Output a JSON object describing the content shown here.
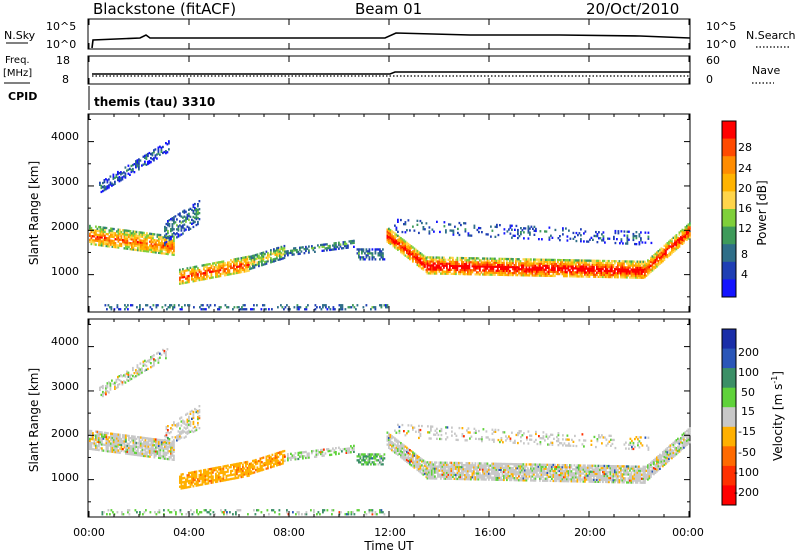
{
  "header": {
    "station": "Blackstone (fitACF)",
    "beam": "Beam 01",
    "date": "20/Oct/2010"
  },
  "top_panels": {
    "nsky_label": "N.Sky",
    "nsky_ticks": [
      "10^5",
      "10^0"
    ],
    "nsearch_label": "N.Search",
    "nsearch_ticks": [
      "10^5",
      "10^0"
    ],
    "freq_label": [
      "Freq.",
      "[MHz]"
    ],
    "freq_ticks": [
      "18",
      "8"
    ],
    "nave_label": "Nave",
    "nave_ticks": [
      "60",
      "0"
    ],
    "cpid_label": "CPID",
    "cpid_value": "themis (tau) 3310"
  },
  "power_panel": {
    "ylabel": "Slant Range [km]",
    "yticks": [
      "4000",
      "3000",
      "2000",
      "1000"
    ],
    "colorbar_label": "Power [dB]",
    "colorbar_ticks": [
      "28",
      "24",
      "20",
      "16",
      "12",
      "8",
      "4"
    ],
    "colors": [
      "#ff0000",
      "#ff4a00",
      "#ff8c00",
      "#ffb300",
      "#ffd54a",
      "#7fcf3a",
      "#3e9a5a",
      "#2f6e88",
      "#1f3fb4",
      "#1414ff"
    ]
  },
  "velocity_panel": {
    "ylabel": "Slant Range [km]",
    "yticks": [
      "4000",
      "3000",
      "2000",
      "1000"
    ],
    "colorbar_label_parts": [
      "Velocity [m s",
      "-1",
      "]"
    ],
    "colorbar_ticks": [
      "200",
      "100",
      "50",
      "15",
      "-15",
      "-50",
      "-100",
      "-200"
    ],
    "colors": [
      "#1a2ea8",
      "#2a56b8",
      "#3b8f66",
      "#5fd23a",
      "#c8c8c8",
      "#ffb000",
      "#ff6a00",
      "#ff3000",
      "#ff0000"
    ]
  },
  "xaxis": {
    "ticks": [
      "00:00",
      "04:00",
      "08:00",
      "12:00",
      "16:00",
      "20:00",
      "00:00"
    ],
    "label": "Time UT"
  },
  "chart_data": {
    "type": "heatmap",
    "title": "Blackstone (fitACF)",
    "x_hours": [
      0,
      24
    ],
    "xlim_hours": [
      0,
      24
    ],
    "ylim_km": [
      180,
      4600
    ],
    "ylabel": "Slant Range [km]",
    "xlabel": "Time UT",
    "series": [
      {
        "t0": 0.4,
        "t1": 3.2,
        "r_start": 2950,
        "r_end": 3900,
        "thickness": 250,
        "density": 0.5,
        "power_mean": 6,
        "vel_mean": 0
      },
      {
        "t0": 0.0,
        "t1": 3.4,
        "r_start": 1900,
        "r_end": 1650,
        "thickness": 450,
        "density": 0.8,
        "power_mean": 18,
        "vel_mean": 0
      },
      {
        "t0": 3.0,
        "t1": 4.4,
        "r_start": 1900,
        "r_end": 2400,
        "thickness": 500,
        "density": 0.4,
        "power_mean": 8,
        "vel_mean": 0
      },
      {
        "t0": 3.6,
        "t1": 6.4,
        "r_start": 950,
        "r_end": 1250,
        "thickness": 350,
        "density": 0.75,
        "power_mean": 20,
        "vel_mean": -40
      },
      {
        "t0": 6.4,
        "t1": 7.8,
        "r_start": 1250,
        "r_end": 1500,
        "thickness": 280,
        "density": 0.7,
        "power_mean": 15,
        "vel_mean": -40
      },
      {
        "t0": 7.8,
        "t1": 10.6,
        "r_start": 1500,
        "r_end": 1700,
        "thickness": 180,
        "density": 0.5,
        "power_mean": 9,
        "vel_mean": 10
      },
      {
        "t0": 10.7,
        "t1": 11.8,
        "r_start": 1450,
        "r_end": 1450,
        "thickness": 250,
        "density": 0.5,
        "power_mean": 8,
        "vel_mean": 30
      },
      {
        "t0": 11.9,
        "t1": 13.5,
        "r_start": 1900,
        "r_end": 1200,
        "thickness": 350,
        "density": 0.9,
        "power_mean": 22,
        "vel_mean": 0
      },
      {
        "t0": 13.5,
        "t1": 22.2,
        "r_start": 1200,
        "r_end": 1100,
        "thickness": 380,
        "density": 0.85,
        "power_mean": 24,
        "vel_mean": 0
      },
      {
        "t0": 22.2,
        "t1": 24.0,
        "r_start": 1100,
        "r_end": 2000,
        "thickness": 350,
        "density": 0.85,
        "power_mean": 22,
        "vel_mean": 0
      },
      {
        "t0": 12.2,
        "t1": 22.5,
        "r_start": 2100,
        "r_end": 1800,
        "thickness": 300,
        "density": 0.2,
        "power_mean": 6,
        "vel_mean": 0
      },
      {
        "t0": 0.5,
        "t1": 12.0,
        "r_start": 260,
        "r_end": 260,
        "thickness": 120,
        "density": 0.25,
        "power_mean": 8,
        "vel_mean": 20
      }
    ]
  }
}
